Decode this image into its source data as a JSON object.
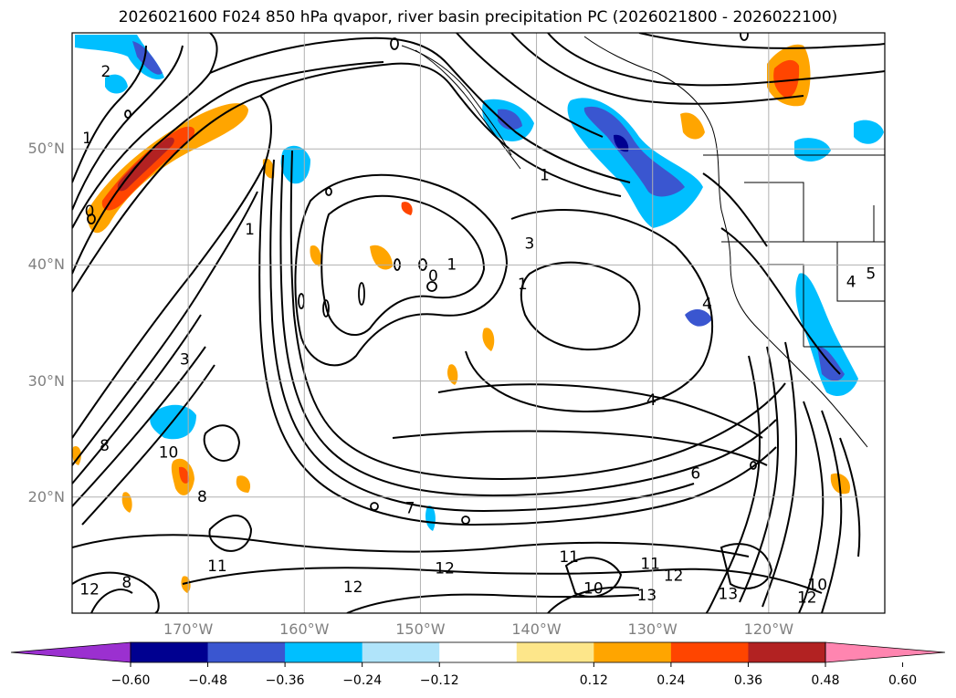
{
  "title": "2026021600 F024 850 hPa qvapor, river basin precipitation PC (2026021800 - 2026022100)",
  "map": {
    "lon_range": [
      -180,
      -110
    ],
    "lat_range": [
      10,
      60
    ],
    "lat_ticks": [
      {
        "value": 20,
        "label": "20°N"
      },
      {
        "value": 30,
        "label": "30°N"
      },
      {
        "value": 40,
        "label": "40°N"
      },
      {
        "value": 50,
        "label": "50°N"
      }
    ],
    "lon_ticks": [
      {
        "value": -170,
        "label": "170°W"
      },
      {
        "value": -160,
        "label": "160°W"
      },
      {
        "value": -150,
        "label": "150°W"
      },
      {
        "value": -140,
        "label": "140°W"
      },
      {
        "value": -130,
        "label": "130°W"
      },
      {
        "value": -120,
        "label": "120°W"
      }
    ],
    "grid": true,
    "contour_labels": [
      {
        "text": "2",
        "lon": -177.1,
        "lat": 56.6
      },
      {
        "text": "1",
        "lon": -178.7,
        "lat": 50.9
      },
      {
        "text": "0",
        "lon": -178.5,
        "lat": 44.6
      },
      {
        "text": "3",
        "lon": -170.3,
        "lat": 31.8
      },
      {
        "text": "8",
        "lon": -177.2,
        "lat": 24.4
      },
      {
        "text": "10",
        "lon": -171.7,
        "lat": 23.8
      },
      {
        "text": "8",
        "lon": -168.8,
        "lat": 20.0
      },
      {
        "text": "11",
        "lon": -167.5,
        "lat": 14.0
      },
      {
        "text": "12",
        "lon": -178.5,
        "lat": 12.0
      },
      {
        "text": "8",
        "lon": -175.3,
        "lat": 12.6
      },
      {
        "text": "7",
        "lon": -150.9,
        "lat": 19.0
      },
      {
        "text": "12",
        "lon": -155.8,
        "lat": 12.2
      },
      {
        "text": "12",
        "lon": -147.9,
        "lat": 13.8
      },
      {
        "text": "11",
        "lon": -137.2,
        "lat": 14.8
      },
      {
        "text": "10",
        "lon": -135.1,
        "lat": 12.1
      },
      {
        "text": "11",
        "lon": -130.2,
        "lat": 14.2
      },
      {
        "text": "12",
        "lon": -128.2,
        "lat": 13.2
      },
      {
        "text": "13",
        "lon": -130.5,
        "lat": 11.5
      },
      {
        "text": "13",
        "lon": -123.5,
        "lat": 11.6
      },
      {
        "text": "12",
        "lon": -116.7,
        "lat": 11.3
      },
      {
        "text": "10",
        "lon": -115.8,
        "lat": 12.4
      },
      {
        "text": "4",
        "lon": -130.1,
        "lat": 28.3
      },
      {
        "text": "6",
        "lon": -126.3,
        "lat": 22.0
      },
      {
        "text": "1",
        "lon": -141.2,
        "lat": 38.3
      },
      {
        "text": "3",
        "lon": -140.6,
        "lat": 41.8
      },
      {
        "text": "1",
        "lon": -139.3,
        "lat": 47.7
      },
      {
        "text": "1",
        "lon": -147.3,
        "lat": 40.0
      },
      {
        "text": "0",
        "lon": -148.9,
        "lat": 39.0
      },
      {
        "text": "1",
        "lon": -164.7,
        "lat": 43.0
      },
      {
        "text": "4",
        "lon": -125.3,
        "lat": 36.6
      },
      {
        "text": "5",
        "lon": -111.2,
        "lat": 39.2
      },
      {
        "text": "4",
        "lon": -112.9,
        "lat": 38.5
      }
    ]
  },
  "colorbar": {
    "ticks": [
      "−0.60",
      "−0.48",
      "−0.36",
      "−0.24",
      "−0.12",
      "0.12",
      "0.24",
      "0.36",
      "0.48",
      "0.60"
    ],
    "levels": [
      -0.72,
      -0.6,
      -0.48,
      -0.36,
      -0.24,
      -0.12,
      0.12,
      0.24,
      0.36,
      0.48,
      0.6,
      0.72
    ],
    "colors": [
      "#9b30d0",
      "#000090",
      "#3a56d0",
      "#00bfff",
      "#b0e4fa",
      "#ffffff",
      "#fde68a",
      "#ffa500",
      "#ff4500",
      "#b22222",
      "#ff85b0"
    ],
    "extend": "both"
  }
}
